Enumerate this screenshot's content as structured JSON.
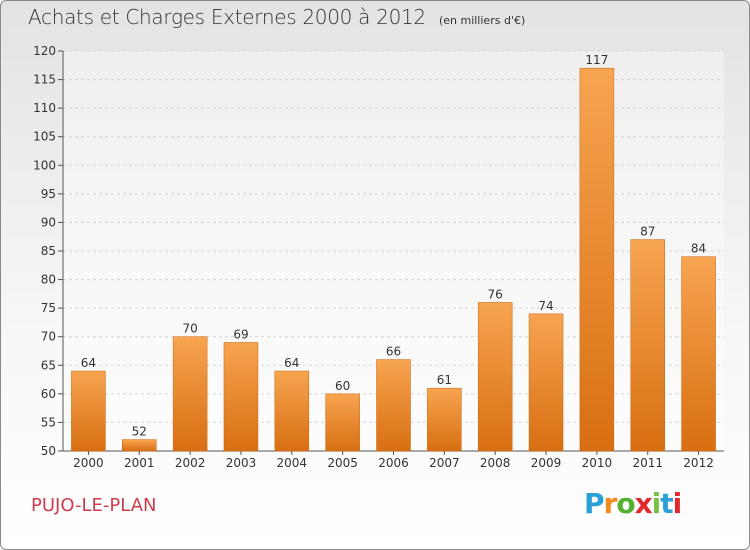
{
  "header": {
    "title": "Achats et Charges Externes 2000 à 2012",
    "unit": "(en milliers d'€)"
  },
  "footer": {
    "town": "PUJO-LE-PLAN"
  },
  "brand": {
    "letters": [
      "P",
      "r",
      "o",
      "x",
      "i",
      "t",
      "i"
    ],
    "colors": [
      "#2aa0d8",
      "#f18b1e",
      "#55b030",
      "#e2282d",
      "#7ac143",
      "#2aa0d8",
      "#e2282d"
    ]
  },
  "chart_data": {
    "type": "bar",
    "title": "Achats et Charges Externes 2000 à 2012",
    "unit": "(en milliers d'€)",
    "categories": [
      "2000",
      "2001",
      "2002",
      "2003",
      "2004",
      "2005",
      "2006",
      "2007",
      "2008",
      "2009",
      "2010",
      "2011",
      "2012"
    ],
    "values": [
      64,
      52,
      70,
      69,
      64,
      60,
      66,
      61,
      76,
      74,
      117,
      87,
      84
    ],
    "ylim": [
      50,
      120
    ],
    "yticks": [
      50,
      55,
      60,
      65,
      70,
      75,
      80,
      85,
      90,
      95,
      100,
      105,
      110,
      115,
      120
    ],
    "grid": true,
    "bar_color": "#f08a2c"
  }
}
